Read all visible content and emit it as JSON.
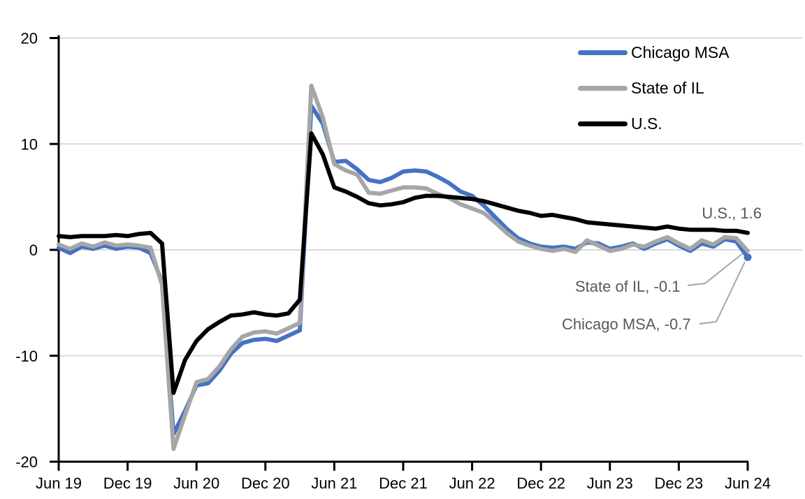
{
  "chart_data": {
    "type": "line",
    "title": "",
    "frequency": "monthly",
    "x_start": "Jun 2019",
    "x_end": "Jun 2024",
    "x_tick_labels": [
      "Jun 19",
      "Dec 19",
      "Jun 20",
      "Dec 20",
      "Jun 21",
      "Dec 21",
      "Jun 22",
      "Dec 22",
      "Jun 23",
      "Dec 23",
      "Jun 24"
    ],
    "y_ticks": [
      20,
      10,
      0,
      -10,
      -20
    ],
    "ylim": [
      -20,
      20
    ],
    "grid": "horizontal-only",
    "legend_position": "top-right",
    "colors": {
      "chicago_msa": "#4472C4",
      "state_of_il": "#A6A6A6",
      "us": "#000000",
      "gridline": "#D9D9D9",
      "axis": "#000000",
      "annotation_text": "#595959",
      "leader_line": "#A6A6A6"
    },
    "series": [
      {
        "name": "Chicago MSA",
        "color": "#4472C4",
        "end_value": -0.7,
        "end_marker_dot": true,
        "values": [
          0.2,
          -0.3,
          0.3,
          0.1,
          0.4,
          0.1,
          0.3,
          0.2,
          -0.3,
          -3.0,
          -17.4,
          -15.2,
          -12.8,
          -12.6,
          -11.4,
          -9.8,
          -8.8,
          -8.5,
          -8.4,
          -8.6,
          -8.1,
          -7.6,
          13.6,
          11.9,
          8.3,
          8.4,
          7.6,
          6.6,
          6.4,
          6.8,
          7.4,
          7.5,
          7.4,
          6.9,
          6.3,
          5.5,
          5.1,
          4.2,
          3.1,
          2.0,
          1.1,
          0.6,
          0.3,
          0.2,
          0.3,
          0.1,
          0.7,
          0.6,
          0.1,
          0.3,
          0.6,
          0.1,
          0.6,
          1.0,
          0.4,
          -0.1,
          0.6,
          0.3,
          1.0,
          0.8,
          -0.7
        ]
      },
      {
        "name": "State of IL",
        "color": "#A6A6A6",
        "end_value": -0.1,
        "end_marker_dot": false,
        "values": [
          0.5,
          0.1,
          0.6,
          0.3,
          0.7,
          0.4,
          0.5,
          0.4,
          0.2,
          -3.3,
          -18.8,
          -15.6,
          -12.5,
          -12.2,
          -11.0,
          -9.4,
          -8.2,
          -7.8,
          -7.7,
          -7.9,
          -7.4,
          -6.9,
          15.5,
          12.5,
          8.1,
          7.5,
          7.1,
          5.4,
          5.3,
          5.6,
          5.9,
          5.9,
          5.8,
          5.3,
          4.9,
          4.3,
          3.9,
          3.5,
          2.6,
          1.6,
          0.8,
          0.4,
          0.1,
          -0.1,
          0.1,
          -0.2,
          0.9,
          0.4,
          -0.1,
          0.1,
          0.5,
          0.3,
          0.8,
          1.2,
          0.6,
          0.1,
          0.9,
          0.5,
          1.2,
          1.1,
          -0.1
        ]
      },
      {
        "name": "U.S.",
        "color": "#000000",
        "end_value": 1.6,
        "end_marker_dot": false,
        "values": [
          1.3,
          1.2,
          1.3,
          1.3,
          1.3,
          1.4,
          1.3,
          1.5,
          1.6,
          0.6,
          -13.5,
          -10.4,
          -8.6,
          -7.5,
          -6.8,
          -6.2,
          -6.1,
          -5.9,
          -6.1,
          -6.2,
          -6.0,
          -4.7,
          11.0,
          9.0,
          5.9,
          5.5,
          5.0,
          4.4,
          4.2,
          4.3,
          4.5,
          4.9,
          5.1,
          5.1,
          5.0,
          4.9,
          4.8,
          4.6,
          4.3,
          4.0,
          3.7,
          3.5,
          3.2,
          3.3,
          3.1,
          2.9,
          2.6,
          2.5,
          2.4,
          2.3,
          2.2,
          2.1,
          2.0,
          2.2,
          2.0,
          1.9,
          1.9,
          1.9,
          1.8,
          1.8,
          1.6
        ]
      }
    ],
    "annotations": {
      "us": "U.S., 1.6",
      "il": "State of IL, -0.1",
      "chicago": "Chicago MSA, -0.7"
    }
  },
  "legend": {
    "items": [
      {
        "label": "Chicago MSA"
      },
      {
        "label": "State of IL"
      },
      {
        "label": "U.S."
      }
    ]
  }
}
